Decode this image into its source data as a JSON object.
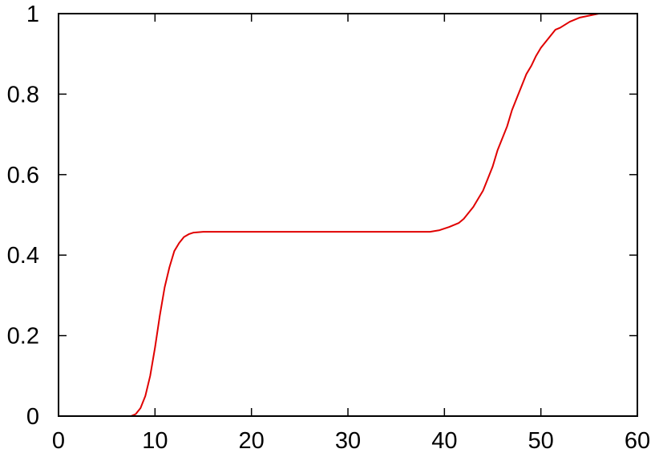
{
  "chart_data": {
    "type": "line",
    "title": "",
    "xlabel": "",
    "ylabel": "",
    "xlim": [
      0,
      60
    ],
    "ylim": [
      0,
      1
    ],
    "xticks": [
      0,
      10,
      20,
      30,
      40,
      50,
      60
    ],
    "yticks": [
      0,
      0.2,
      0.4,
      0.6,
      0.8,
      1
    ],
    "xtick_labels": [
      "0",
      "10",
      "20",
      "30",
      "40",
      "50",
      "60"
    ],
    "ytick_labels": [
      "0",
      "0.2",
      "0.4",
      "0.6",
      "0.8",
      "1"
    ],
    "grid": false,
    "legend": "none",
    "series": [
      {
        "color": "#e00000",
        "x": [
          0,
          7.5,
          8,
          8.5,
          9,
          9.5,
          10,
          10.5,
          11,
          11.5,
          12,
          12.5,
          13,
          13.5,
          14,
          15,
          16,
          20,
          30,
          38.5,
          39.5,
          40.5,
          41.5,
          42,
          42.5,
          43,
          43.5,
          44,
          44.5,
          45,
          45.5,
          46,
          46.5,
          47,
          47.5,
          48,
          48.5,
          49,
          49.5,
          50,
          50.5,
          51,
          51.5,
          52,
          53,
          54,
          55,
          56,
          58,
          60
        ],
        "y": [
          0,
          0,
          0.005,
          0.02,
          0.05,
          0.1,
          0.17,
          0.25,
          0.32,
          0.37,
          0.41,
          0.43,
          0.445,
          0.452,
          0.456,
          0.458,
          0.458,
          0.458,
          0.458,
          0.458,
          0.462,
          0.47,
          0.48,
          0.49,
          0.505,
          0.52,
          0.54,
          0.56,
          0.59,
          0.62,
          0.66,
          0.69,
          0.72,
          0.76,
          0.79,
          0.82,
          0.85,
          0.87,
          0.895,
          0.915,
          0.93,
          0.945,
          0.96,
          0.965,
          0.98,
          0.99,
          0.995,
          1,
          1,
          1
        ]
      }
    ]
  }
}
